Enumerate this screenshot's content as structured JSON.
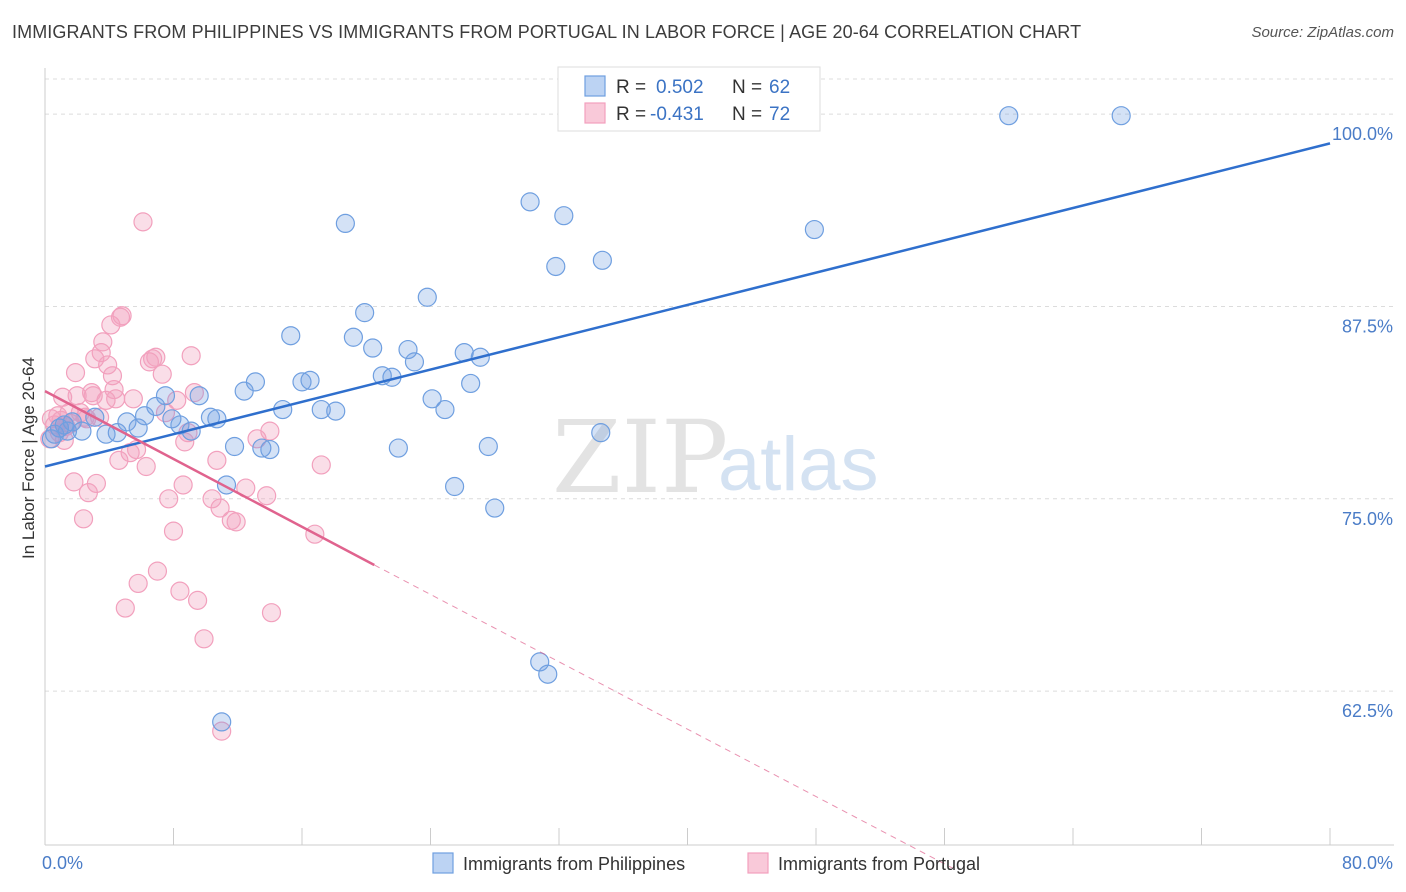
{
  "header": {
    "title": "IMMIGRANTS FROM PHILIPPINES VS IMMIGRANTS FROM PORTUGAL IN LABOR FORCE | AGE 20-64 CORRELATION CHART",
    "source": "Source: ZipAtlas.com"
  },
  "watermark": {
    "zip": "ZIP",
    "atlas": "atlas"
  },
  "legend": {
    "r_label": "R =",
    "n_label": "N =",
    "rows": [
      {
        "r": "0.502",
        "n": "62"
      },
      {
        "r": "-0.431",
        "n": "72"
      }
    ]
  },
  "chart_data": {
    "type": "scatter",
    "title": "IMMIGRANTS FROM PHILIPPINES VS IMMIGRANTS FROM PORTUGAL IN LABOR FORCE | AGE 20-64 CORRELATION CHART",
    "xlabel": "",
    "ylabel": "In Labor Force | Age 20-64",
    "xlim": [
      0,
      80
    ],
    "ylim": [
      52.5,
      103
    ],
    "x_tick_labels": [
      "0.0%",
      "80.0%"
    ],
    "y_ticks": [
      62.5,
      75.0,
      87.5,
      100.0
    ],
    "y_tick_labels": [
      "62.5%",
      "75.0%",
      "87.5%",
      "100.0%"
    ],
    "grid": true,
    "legend_position": "top-center",
    "colors": {
      "philippines": "#6f9fe0",
      "portugal": "#f2a0bd",
      "philippines_line": "#2f6fcd",
      "portugal_line": "#e0638e"
    },
    "series": [
      {
        "name": "Immigrants from Philippines",
        "r": 0.502,
        "n": 62,
        "trend": {
          "x": [
            0,
            80
          ],
          "y": [
            77.1,
            98.1
          ]
        },
        "points": [
          [
            0.6,
            79.2
          ],
          [
            0.9,
            79.6
          ],
          [
            1.2,
            79.8
          ],
          [
            1.4,
            79.4
          ],
          [
            1.7,
            80.0
          ],
          [
            2.3,
            79.4
          ],
          [
            3.1,
            80.3
          ],
          [
            3.8,
            79.2
          ],
          [
            4.5,
            79.3
          ],
          [
            5.1,
            80.0
          ],
          [
            5.8,
            79.6
          ],
          [
            6.2,
            80.4
          ],
          [
            6.9,
            81.0
          ],
          [
            7.5,
            81.7
          ],
          [
            7.9,
            80.2
          ],
          [
            8.4,
            79.8
          ],
          [
            9.1,
            79.4
          ],
          [
            9.6,
            81.7
          ],
          [
            10.3,
            80.3
          ],
          [
            10.7,
            80.2
          ],
          [
            11.3,
            75.9
          ],
          [
            11.8,
            78.4
          ],
          [
            12.4,
            82.0
          ],
          [
            13.1,
            82.6
          ],
          [
            13.5,
            78.3
          ],
          [
            14.0,
            78.2
          ],
          [
            14.8,
            80.8
          ],
          [
            15.3,
            85.6
          ],
          [
            16.0,
            82.6
          ],
          [
            16.5,
            82.7
          ],
          [
            17.2,
            80.8
          ],
          [
            18.1,
            80.7
          ],
          [
            18.7,
            92.9
          ],
          [
            19.2,
            85.5
          ],
          [
            19.9,
            87.1
          ],
          [
            20.4,
            84.8
          ],
          [
            21.0,
            83.0
          ],
          [
            21.6,
            82.9
          ],
          [
            22.0,
            78.3
          ],
          [
            22.6,
            84.7
          ],
          [
            23.0,
            83.9
          ],
          [
            23.8,
            88.1
          ],
          [
            24.1,
            81.5
          ],
          [
            24.9,
            80.8
          ],
          [
            25.5,
            75.8
          ],
          [
            26.1,
            84.5
          ],
          [
            26.5,
            82.5
          ],
          [
            27.1,
            84.2
          ],
          [
            27.6,
            78.4
          ],
          [
            28.0,
            74.4
          ],
          [
            30.2,
            94.3
          ],
          [
            30.8,
            64.4
          ],
          [
            31.3,
            63.6
          ],
          [
            31.8,
            90.1
          ],
          [
            32.3,
            93.4
          ],
          [
            34.6,
            79.3
          ],
          [
            34.7,
            90.5
          ],
          [
            11.0,
            60.5
          ],
          [
            47.9,
            92.5
          ],
          [
            60.0,
            99.9
          ],
          [
            67.0,
            99.9
          ],
          [
            0.4,
            78.9
          ]
        ]
      },
      {
        "name": "Immigrants from Portugal",
        "r": -0.431,
        "n": 72,
        "trend": {
          "x": [
            0,
            20.5
          ],
          "y": [
            82.0,
            70.7
          ]
        },
        "trend_extension": {
          "x": [
            20.5,
            56.5
          ],
          "y": [
            70.7,
            51.0
          ]
        },
        "points": [
          [
            0.4,
            80.2
          ],
          [
            0.6,
            79.8
          ],
          [
            0.8,
            80.4
          ],
          [
            0.9,
            79.3
          ],
          [
            1.1,
            81.6
          ],
          [
            1.2,
            78.8
          ],
          [
            1.3,
            79.7
          ],
          [
            1.5,
            80.6
          ],
          [
            1.6,
            79.9
          ],
          [
            1.8,
            76.1
          ],
          [
            1.9,
            83.2
          ],
          [
            2.0,
            81.7
          ],
          [
            2.2,
            80.6
          ],
          [
            2.4,
            73.7
          ],
          [
            2.5,
            80.3
          ],
          [
            2.6,
            80.2
          ],
          [
            2.7,
            75.4
          ],
          [
            2.9,
            81.9
          ],
          [
            3.0,
            81.7
          ],
          [
            3.1,
            84.1
          ],
          [
            3.2,
            76.0
          ],
          [
            3.4,
            80.3
          ],
          [
            3.5,
            84.5
          ],
          [
            3.6,
            85.2
          ],
          [
            3.8,
            81.4
          ],
          [
            3.9,
            83.7
          ],
          [
            4.1,
            86.3
          ],
          [
            4.2,
            83.0
          ],
          [
            4.3,
            82.1
          ],
          [
            4.4,
            81.5
          ],
          [
            4.6,
            77.5
          ],
          [
            4.7,
            86.8
          ],
          [
            4.8,
            86.9
          ],
          [
            5.0,
            67.9
          ],
          [
            5.3,
            78.0
          ],
          [
            5.5,
            81.5
          ],
          [
            5.7,
            78.2
          ],
          [
            5.8,
            69.5
          ],
          [
            6.1,
            93.0
          ],
          [
            6.3,
            77.1
          ],
          [
            6.5,
            83.9
          ],
          [
            6.7,
            84.1
          ],
          [
            6.9,
            84.2
          ],
          [
            7.0,
            70.3
          ],
          [
            7.3,
            83.1
          ],
          [
            7.5,
            80.6
          ],
          [
            7.7,
            75.0
          ],
          [
            8.0,
            72.9
          ],
          [
            8.2,
            81.4
          ],
          [
            8.4,
            69.0
          ],
          [
            8.6,
            75.9
          ],
          [
            8.7,
            78.7
          ],
          [
            8.9,
            79.3
          ],
          [
            9.1,
            84.3
          ],
          [
            9.3,
            81.9
          ],
          [
            9.5,
            68.4
          ],
          [
            9.9,
            65.9
          ],
          [
            10.4,
            75.0
          ],
          [
            10.7,
            77.5
          ],
          [
            10.9,
            74.4
          ],
          [
            11.0,
            59.9
          ],
          [
            11.6,
            73.6
          ],
          [
            11.9,
            73.5
          ],
          [
            12.5,
            75.7
          ],
          [
            13.2,
            78.9
          ],
          [
            13.8,
            75.2
          ],
          [
            14.0,
            79.4
          ],
          [
            14.1,
            67.6
          ],
          [
            16.8,
            72.7
          ],
          [
            17.2,
            77.2
          ],
          [
            0.3,
            78.9
          ],
          [
            1.0,
            80.1
          ]
        ]
      }
    ]
  },
  "bottom_legend": {
    "items": [
      "Immigrants from Philippines",
      "Immigrants from Portugal"
    ]
  }
}
